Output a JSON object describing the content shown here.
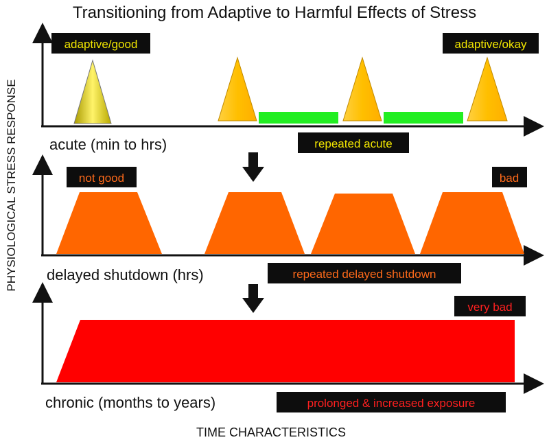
{
  "title": "Transitioning from Adaptive to Harmful Effects of Stress",
  "y_axis_label": "PHYSIOLOGICAL STRESS RESPONSE",
  "x_axis_label": "TIME CHARACTERISTICS",
  "panels": {
    "acute": {
      "label": "acute (min to hrs)",
      "badge_left": "adaptive/good",
      "badge_right": "adaptive/okay",
      "badge_repeated": "repeated acute"
    },
    "delayed": {
      "label": "delayed shutdown (hrs)",
      "badge_left": "not good",
      "badge_right": "bad",
      "badge_repeated": "repeated delayed shutdown"
    },
    "chronic": {
      "label": "chronic (months to years)",
      "badge_right": "very bad",
      "badge_exposure": "prolonged & increased exposure"
    }
  },
  "colors": {
    "axis": "#111111",
    "badge_bg": "#0d0d0d",
    "badge_text_yellow": "#f2e600",
    "badge_text_orange": "#ff6a1a",
    "badge_text_red": "#ff2020",
    "acute_cone": "#d9c800",
    "acute_triangle": "#ffbf00",
    "green_bar": "#22ee22",
    "orange_shape": "#ff6600",
    "red_shape": "#ff0000"
  }
}
